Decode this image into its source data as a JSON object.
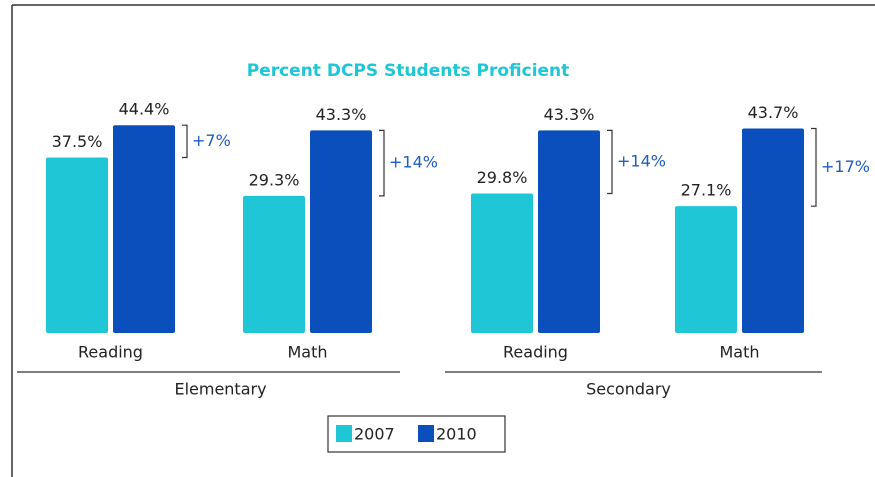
{
  "chart_data": {
    "type": "bar",
    "title": "Percent DCPS Students Proficient",
    "categories": [
      "Reading",
      "Math",
      "Reading",
      "Math"
    ],
    "groups": [
      "Elementary",
      "Secondary"
    ],
    "series": [
      {
        "name": "2007",
        "color": "#1ec6d6",
        "values": [
          37.5,
          29.3,
          29.8,
          27.1
        ],
        "value_labels": [
          "37.5%",
          "29.3%",
          "29.8%",
          "27.1%"
        ]
      },
      {
        "name": "2010",
        "color": "#0b4fbd",
        "values": [
          44.4,
          43.3,
          43.3,
          43.7
        ],
        "value_labels": [
          "44.4%",
          "43.3%",
          "43.3%",
          "43.7%"
        ]
      }
    ],
    "annotations": [
      "+7%",
      "+14%",
      "+14%",
      "+17%"
    ],
    "ylim": [
      0,
      50
    ]
  }
}
